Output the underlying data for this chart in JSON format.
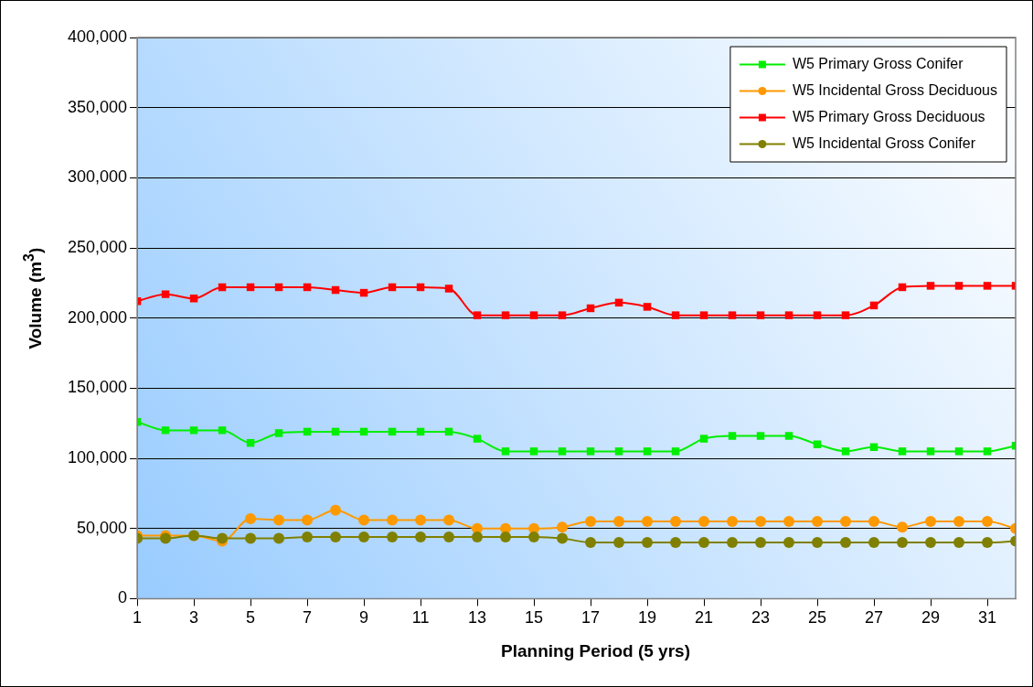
{
  "chart_data": {
    "type": "line",
    "xlabel": "Planning Period (5 yrs)",
    "ylabel": "Volume (m$^{3}$)",
    "x": [
      1,
      2,
      3,
      4,
      5,
      6,
      7,
      8,
      9,
      10,
      11,
      12,
      13,
      14,
      15,
      16,
      17,
      18,
      19,
      20,
      21,
      22,
      23,
      24,
      25,
      26,
      27,
      28,
      29,
      30,
      31,
      32
    ],
    "xlim": [
      1,
      32
    ],
    "xticks": [
      1,
      3,
      5,
      7,
      9,
      11,
      13,
      15,
      17,
      19,
      21,
      23,
      25,
      27,
      29,
      31
    ],
    "ylim": [
      0,
      400000
    ],
    "yticks": [
      0,
      {
        "value": 50000,
        "label": "50,000"
      },
      {
        "value": 100000,
        "label": "100,000"
      },
      {
        "value": 150000,
        "label": "150,000"
      },
      {
        "value": 200000,
        "label": "200,000"
      },
      {
        "value": 250000,
        "label": "250,000"
      },
      {
        "value": 300000,
        "label": "300,000"
      },
      {
        "value": 350000,
        "label": "350,000"
      },
      {
        "value": 400000,
        "label": "400,000"
      }
    ],
    "grid": "y",
    "legend": "top right",
    "series": [
      {
        "name": "W5 Primary Gross Conifer",
        "color": "#00ee00",
        "marker": "square",
        "values": [
          126000,
          120000,
          120000,
          120000,
          111000,
          118000,
          119000,
          119000,
          119000,
          119000,
          119000,
          119000,
          114000,
          105000,
          105000,
          105000,
          105000,
          105000,
          105000,
          105000,
          114000,
          116000,
          116000,
          116000,
          110000,
          105000,
          108000,
          105000,
          105000,
          105000,
          105000,
          109000
        ]
      },
      {
        "name": "W5 Incidental Gross Deciduous",
        "color": "#ff9900",
        "marker": "circle",
        "values": [
          45000,
          45000,
          45000,
          41000,
          57000,
          56000,
          56000,
          63000,
          56000,
          56000,
          56000,
          56000,
          50000,
          50000,
          50000,
          51000,
          55000,
          55000,
          55000,
          55000,
          55000,
          55000,
          55000,
          55000,
          55000,
          55000,
          55000,
          51000,
          55000,
          55000,
          55000,
          50000
        ]
      },
      {
        "name": "W5 Primary Gross Deciduous",
        "color": "#ff0000",
        "marker": "square",
        "values": [
          212000,
          217000,
          214000,
          222000,
          222000,
          222000,
          222000,
          220000,
          218000,
          222000,
          222000,
          221000,
          202000,
          202000,
          202000,
          202000,
          207000,
          211000,
          208000,
          202000,
          202000,
          202000,
          202000,
          202000,
          202000,
          202000,
          209000,
          222000,
          223000,
          223000,
          223000,
          223000
        ]
      },
      {
        "name": "W5 Incidental Gross Conifer",
        "color": "#808000",
        "marker": "circle",
        "values": [
          43000,
          43000,
          45000,
          43000,
          43000,
          43000,
          44000,
          44000,
          44000,
          44000,
          44000,
          44000,
          44000,
          44000,
          44000,
          43000,
          40000,
          40000,
          40000,
          40000,
          40000,
          40000,
          40000,
          40000,
          40000,
          40000,
          40000,
          40000,
          40000,
          40000,
          40000,
          41000
        ]
      }
    ]
  }
}
